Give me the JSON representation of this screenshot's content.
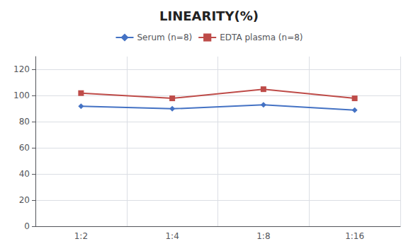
{
  "chart_data": {
    "type": "line",
    "title": "LINEARITY(%)",
    "categories": [
      "1:2",
      "1:4",
      "1:8",
      "1:16"
    ],
    "series": [
      {
        "name": "Serum (n=8)",
        "color": "#4472c4",
        "marker": "diamond",
        "values": [
          92,
          90,
          93,
          89
        ]
      },
      {
        "name": "EDTA plasma (n=8)",
        "color": "#be4b48",
        "marker": "square",
        "values": [
          102,
          98,
          105,
          98
        ]
      }
    ],
    "ylim": [
      0,
      130
    ],
    "yticks": [
      0,
      20,
      40,
      60,
      80,
      100,
      120
    ],
    "grid": true,
    "legend": "top"
  }
}
